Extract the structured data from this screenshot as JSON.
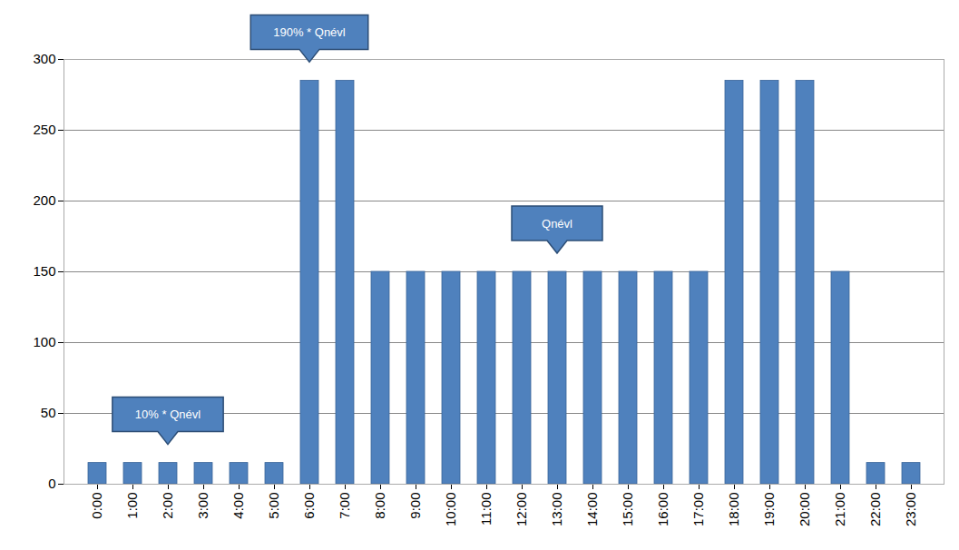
{
  "chart_data": {
    "type": "bar",
    "categories": [
      "0:00",
      "1:00",
      "2:00",
      "3:00",
      "4:00",
      "5:00",
      "6:00",
      "7:00",
      "8:00",
      "9:00",
      "10:00",
      "11:00",
      "12:00",
      "13:00",
      "14:00",
      "15:00",
      "16:00",
      "17:00",
      "18:00",
      "19:00",
      "20:00",
      "21:00",
      "22:00",
      "23:00"
    ],
    "values": [
      15,
      15,
      15,
      15,
      15,
      15,
      285,
      285,
      150,
      150,
      150,
      150,
      150,
      150,
      150,
      150,
      150,
      150,
      285,
      285,
      285,
      150,
      15,
      15
    ],
    "color": "#4f81bd",
    "ylim": [
      0,
      300
    ],
    "yticks": [
      0,
      50,
      100,
      150,
      200,
      250,
      300
    ],
    "grid": true,
    "annotations": [
      {
        "text": "190% * Qnévl",
        "x": "6:00",
        "y": 285
      },
      {
        "text": "Qnévl",
        "x": "13:00",
        "y": 150
      },
      {
        "text": "10% * Qnévl",
        "x": "2:00",
        "y": 15
      }
    ]
  }
}
